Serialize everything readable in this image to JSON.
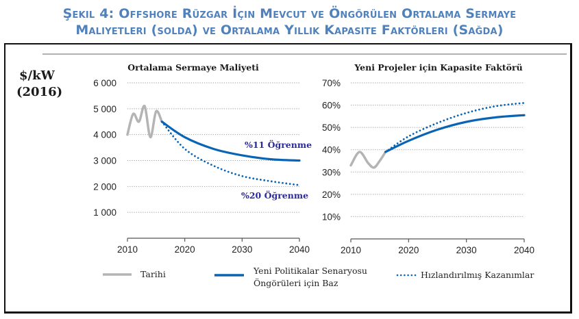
{
  "figure": {
    "title_line1": "Şekil 4: Offshore Rüzgar İçin Mevcut ve Öngörülen Ortalama Sermaye",
    "title_line2": "Maliyetleri (solda) ve Ortalama Yıllık Kapasite Faktörleri (Sağda)",
    "unit_label_line1": "$/kW",
    "unit_label_line2": "(2016)"
  },
  "colors": {
    "title": "#4f81bd",
    "historic": "#b4b4b4",
    "base": "#0a64b4",
    "accelerated": "#0a64b4",
    "annotation": "#2a2a9a",
    "grid": "#9a9a9a"
  },
  "legend": {
    "items": [
      {
        "label": "Tarihi",
        "style": "solid-gray"
      },
      {
        "label_line1": "Yeni Politikalar Senaryosu",
        "label_line2": "Öngörüleri için Baz",
        "style": "solid-blue"
      },
      {
        "label": "Hızlandırılmış Kazanımlar",
        "style": "dotted-blue"
      }
    ]
  },
  "chart_data": [
    {
      "type": "line",
      "title": "Ortalama Sermaye Maliyeti",
      "ylabel": "$/kW (2016)",
      "xlim": [
        2010,
        2040
      ],
      "ylim": [
        0,
        6000
      ],
      "x_ticks": [
        "2010",
        "2020",
        "2030",
        "2040"
      ],
      "y_ticks": [
        "1 000",
        "2 000",
        "3 000",
        "4 000",
        "5 000",
        "6 000"
      ],
      "y_tick_values": [
        1000,
        2000,
        3000,
        4000,
        5000,
        6000
      ],
      "grid": true,
      "series": [
        {
          "name": "Tarihi",
          "x": [
            2010,
            2011,
            2012,
            2013,
            2014,
            2015,
            2016
          ],
          "y": [
            4000,
            4800,
            4500,
            5100,
            3900,
            4900,
            4500
          ]
        },
        {
          "name": "Yeni Politikalar Senaryosu Öngörüleri için Baz",
          "x": [
            2016,
            2020,
            2025,
            2030,
            2035,
            2040
          ],
          "y": [
            4500,
            3900,
            3450,
            3200,
            3050,
            3000
          ]
        },
        {
          "name": "Hızlandırılmış Kazanımlar",
          "x": [
            2016,
            2020,
            2025,
            2030,
            2035,
            2040
          ],
          "y": [
            4500,
            3450,
            2800,
            2400,
            2200,
            2050
          ]
        }
      ],
      "annotations": [
        {
          "text": "%11 Öğrenme",
          "series": "Yeni Politikalar Senaryosu Öngörüleri için Baz"
        },
        {
          "text": "%20 Öğrenme",
          "series": "Hızlandırılmış Kazanımlar"
        }
      ]
    },
    {
      "type": "line",
      "title": "Yeni Projeler için Kapasite Faktörü",
      "xlim": [
        2010,
        2040
      ],
      "ylim": [
        0,
        70
      ],
      "x_ticks": [
        "2010",
        "2020",
        "2030",
        "2040"
      ],
      "y_ticks": [
        "10%",
        "20%",
        "30%",
        "40%",
        "50%",
        "60%",
        "70%"
      ],
      "y_tick_values": [
        10,
        20,
        30,
        40,
        50,
        60,
        70
      ],
      "grid": true,
      "series": [
        {
          "name": "Tarihi",
          "x": [
            2010,
            2011.5,
            2013,
            2014,
            2015,
            2016
          ],
          "y": [
            33,
            39,
            34,
            32,
            35,
            39
          ]
        },
        {
          "name": "Yeni Politikalar Senaryosu Öngörüleri için Baz",
          "x": [
            2016,
            2020,
            2025,
            2030,
            2035,
            2040
          ],
          "y": [
            39,
            44,
            49,
            52.5,
            54.5,
            55.5
          ]
        },
        {
          "name": "Hızlandırılmış Kazanımlar",
          "x": [
            2016,
            2020,
            2025,
            2030,
            2035,
            2040
          ],
          "y": [
            39,
            46,
            52,
            56.5,
            59.5,
            61
          ]
        }
      ]
    }
  ]
}
